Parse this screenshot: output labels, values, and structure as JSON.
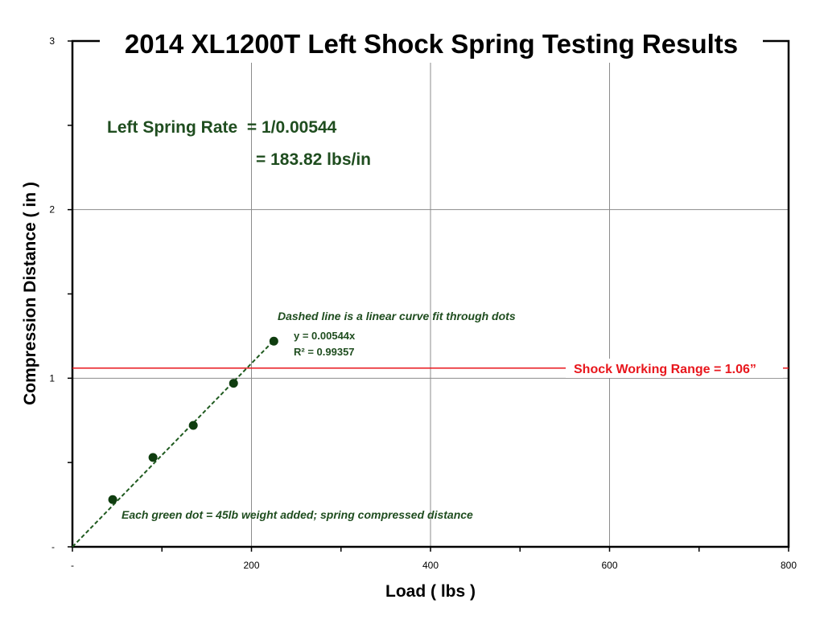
{
  "chart_data": {
    "type": "scatter",
    "title": "2014 XL1200T Left Shock Spring Testing Results",
    "xlabel": "Load ( lbs )",
    "ylabel": "Compression Distance ( in )",
    "xlim": [
      0,
      800
    ],
    "ylim": [
      0,
      3
    ],
    "x_ticks": [
      {
        "value": 0,
        "label": "-"
      },
      {
        "value": 200,
        "label": "200"
      },
      {
        "value": 400,
        "label": "400"
      },
      {
        "value": 600,
        "label": "600"
      },
      {
        "value": 800,
        "label": "800"
      }
    ],
    "y_ticks": [
      {
        "value": 0,
        "label": "-"
      },
      {
        "value": 1,
        "label": "1"
      },
      {
        "value": 2,
        "label": "2"
      },
      {
        "value": 3,
        "label": "3"
      }
    ],
    "x_minor_ticks": [
      100,
      300,
      500,
      700
    ],
    "y_minor_ticks": [
      0.5,
      1.5,
      2.5
    ],
    "grid": true,
    "points": [
      {
        "x": 45,
        "y": 0.28
      },
      {
        "x": 90,
        "y": 0.53
      },
      {
        "x": 135,
        "y": 0.72
      },
      {
        "x": 180,
        "y": 0.97
      },
      {
        "x": 225,
        "y": 1.22
      }
    ],
    "fit_line": {
      "slope": 0.00544,
      "x_range": [
        0,
        225
      ],
      "equation": "y = 0.00544x",
      "r_squared": "R² = 0.99357"
    },
    "reference_line": {
      "y": 1.06,
      "label": "Shock Working Range = 1.06”"
    },
    "annotations": {
      "rate_line1": "Left Spring Rate  = 1/0.00544",
      "rate_line2": "= 183.82 lbs/in",
      "fit_note": "Dashed line is a linear curve fit through dots",
      "dot_note": "Each green dot = 45lb weight added; spring compressed distance"
    },
    "colors": {
      "points": "#0f3d0f",
      "fit_line": "#1f5a1f",
      "reference_line": "#e8161c",
      "annotation": "#1f4d1f",
      "grid": "#8c8c8c"
    }
  }
}
